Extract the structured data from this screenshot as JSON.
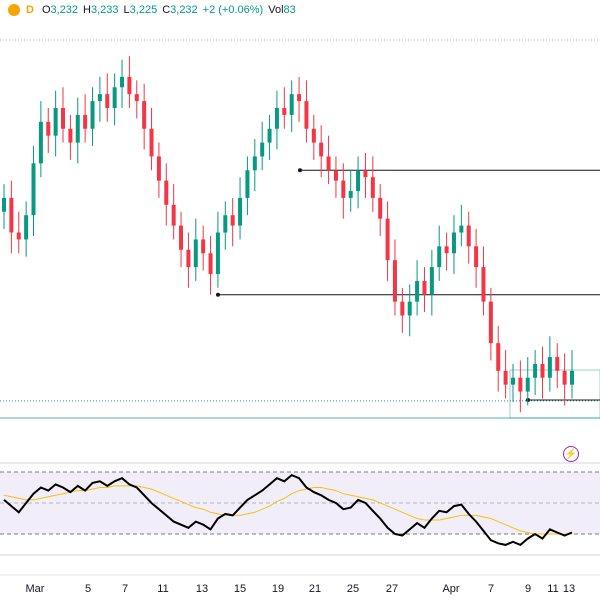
{
  "header": {
    "symbol_badge": "D",
    "open_label": "O",
    "open": "3,232",
    "high_label": "H",
    "high": "3,233",
    "low_label": "L",
    "low": "3,225",
    "close_label": "C",
    "close": "3,232",
    "change": "+2 (+0.06%)",
    "volume_label": "Vol",
    "volume": "83"
  },
  "colors": {
    "up": "#089981",
    "down": "#f23645",
    "level": "#131722",
    "rsi_line": "#000000",
    "rsi_ma": "#f4c20d",
    "rsi_band": "#7e57c2"
  },
  "icons": {
    "bolt": "lightning-icon"
  },
  "chart_data": [
    {
      "type": "candlestick",
      "x_ticks": [
        "Mar",
        "5",
        "7",
        "11",
        "13",
        "15",
        "19",
        "21",
        "25",
        "27",
        "Apr",
        "7",
        "9",
        "11",
        "13"
      ],
      "price_series_close": [
        3220,
        3210,
        3208,
        3215,
        3230,
        3242,
        3238,
        3246,
        3240,
        3236,
        3244,
        3240,
        3248,
        3250,
        3246,
        3252,
        3255,
        3250,
        3248,
        3240,
        3232,
        3225,
        3218,
        3212,
        3205,
        3200,
        3208,
        3204,
        3198,
        3210,
        3215,
        3212,
        3220,
        3228,
        3232,
        3236,
        3240,
        3246,
        3244,
        3250,
        3248,
        3240,
        3236,
        3232,
        3228,
        3225,
        3220,
        3222,
        3228,
        3226,
        3220,
        3214,
        3202,
        3190,
        3186,
        3190,
        3196,
        3192,
        3200,
        3206,
        3204,
        3210,
        3212,
        3206,
        3200,
        3190,
        3178,
        3170,
        3166,
        3168,
        3164,
        3168,
        3172,
        3168,
        3174,
        3170,
        3166,
        3170
      ],
      "levels": [
        3228,
        3192,
        3170,
        3162
      ]
    },
    {
      "type": "line",
      "name": "RSI",
      "series": [
        {
          "values": [
            52,
            48,
            44,
            50,
            56,
            60,
            58,
            62,
            60,
            57,
            61,
            58,
            63,
            64,
            61,
            64,
            66,
            62,
            60,
            55,
            50,
            46,
            42,
            38,
            36,
            34,
            38,
            36,
            33,
            40,
            43,
            42,
            47,
            52,
            55,
            58,
            62,
            66,
            64,
            68,
            66,
            60,
            57,
            55,
            52,
            50,
            46,
            47,
            52,
            50,
            45,
            40,
            34,
            30,
            29,
            33,
            37,
            34,
            40,
            45,
            44,
            48,
            49,
            43,
            38,
            32,
            26,
            24,
            23,
            25,
            23,
            27,
            30,
            27,
            33,
            31,
            29,
            31
          ]
        },
        {
          "values": [
            55,
            54,
            53,
            52,
            52,
            53,
            54,
            55,
            56,
            57,
            58,
            58,
            59,
            60,
            60,
            61,
            61,
            61,
            61,
            60,
            59,
            57,
            55,
            53,
            51,
            49,
            47,
            46,
            44,
            43,
            42,
            42,
            42,
            43,
            44,
            46,
            48,
            51,
            53,
            56,
            58,
            59,
            60,
            60,
            59,
            58,
            56,
            55,
            54,
            53,
            52,
            50,
            48,
            46,
            44,
            42,
            40,
            39,
            39,
            39,
            40,
            41,
            42,
            42,
            42,
            41,
            40,
            38,
            36,
            34,
            32,
            31,
            30,
            30,
            30,
            30,
            30,
            30
          ]
        }
      ],
      "ylim": [
        0,
        100
      ]
    }
  ]
}
